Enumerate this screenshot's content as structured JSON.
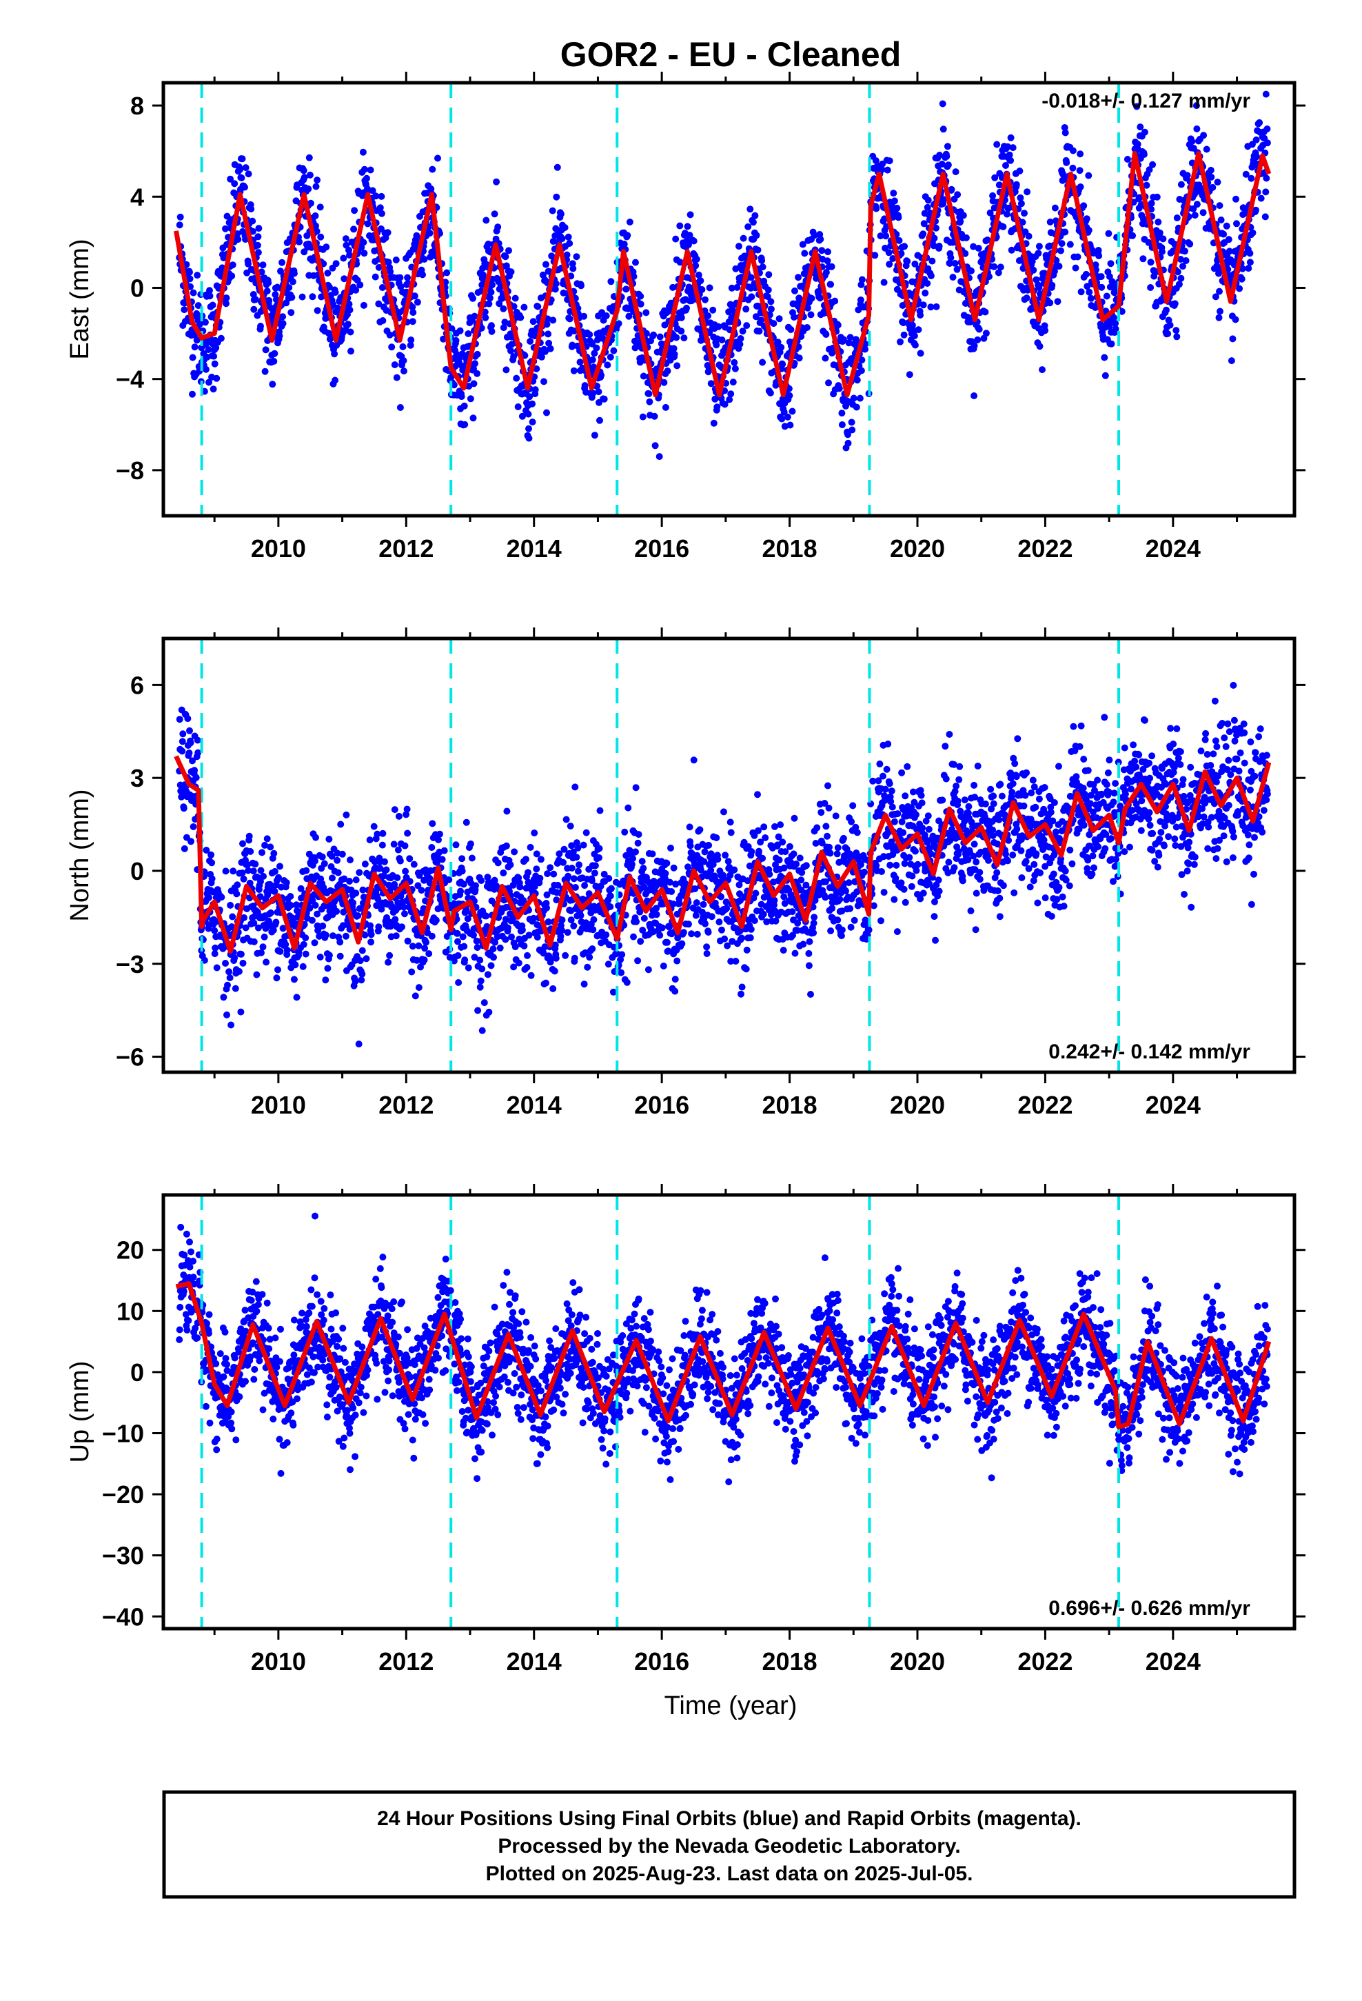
{
  "title": "GOR2  - EU - Cleaned",
  "xlabel": "Time (year)",
  "footer": {
    "line1": "24 Hour Positions Using Final Orbits (blue) and Rapid Orbits (magenta).",
    "line2": "Processed by the Nevada Geodetic Laboratory.",
    "line3": "Plotted on 2025-Aug-23. Last data on 2025-Jul-05."
  },
  "colors": {
    "points": "#0000ff",
    "model": "#ee0000",
    "steps": "#00e5e5",
    "frame": "#000000"
  },
  "chart_data": [
    {
      "type": "scatter",
      "component": "East",
      "ylabel": "East (mm)",
      "xlim": [
        2008.2,
        2025.9
      ],
      "ylim": [
        -10,
        9
      ],
      "xticks": [
        2010,
        2012,
        2014,
        2016,
        2018,
        2020,
        2022,
        2024
      ],
      "yticks": [
        -8,
        -4,
        0,
        4,
        8
      ],
      "rate_label": "-0.018+/- 0.127 mm/yr",
      "rate_position": "top-right",
      "step_epochs": [
        2008.8,
        2012.7,
        2015.3,
        2019.25,
        2023.15
      ],
      "model": {
        "type": "line",
        "x": [
          2008.4,
          2008.65,
          2008.8,
          2009.0,
          2009.4,
          2009.9,
          2010.4,
          2010.9,
          2011.4,
          2011.9,
          2012.4,
          2012.7,
          2012.9,
          2013.4,
          2013.9,
          2014.4,
          2014.9,
          2015.3,
          2015.4,
          2015.9,
          2016.4,
          2016.9,
          2017.4,
          2017.9,
          2018.4,
          2018.9,
          2019.24,
          2019.27,
          2019.4,
          2019.9,
          2020.4,
          2020.9,
          2021.4,
          2021.9,
          2022.4,
          2022.9,
          2023.15,
          2023.4,
          2023.9,
          2024.4,
          2024.9,
          2025.4,
          2025.5
        ],
        "y": [
          2.5,
          -1.5,
          -2.2,
          -2.0,
          4.1,
          -2.3,
          4.1,
          -2.3,
          4.1,
          -2.3,
          4.1,
          -3.5,
          -4.4,
          1.9,
          -4.4,
          1.9,
          -4.4,
          -1.0,
          1.6,
          -4.7,
          1.6,
          -4.7,
          1.6,
          -4.7,
          1.6,
          -4.7,
          -1.2,
          3.6,
          5.0,
          -1.4,
          5.0,
          -1.4,
          5.0,
          -1.4,
          5.0,
          -1.4,
          -0.8,
          5.9,
          -0.6,
          5.9,
          -0.6,
          5.8,
          5.0
        ]
      }
    },
    {
      "type": "scatter",
      "component": "North",
      "ylabel": "North (mm)",
      "xlim": [
        2008.2,
        2025.9
      ],
      "ylim": [
        -6.5,
        7.5
      ],
      "xticks": [
        2010,
        2012,
        2014,
        2016,
        2018,
        2020,
        2022,
        2024
      ],
      "yticks": [
        -6,
        -3,
        0,
        3,
        6
      ],
      "rate_label": "0.242+/- 0.142 mm/yr",
      "rate_position": "bottom-right",
      "step_epochs": [
        2008.8,
        2012.7,
        2015.3,
        2019.25,
        2023.15
      ],
      "model": {
        "type": "line",
        "x": [
          2008.4,
          2008.6,
          2008.75,
          2008.8,
          2008.82,
          2009.0,
          2009.25,
          2009.5,
          2009.75,
          2010.0,
          2010.25,
          2010.5,
          2010.75,
          2011.0,
          2011.25,
          2011.5,
          2011.75,
          2012.0,
          2012.25,
          2012.5,
          2012.7,
          2012.75,
          2013.0,
          2013.25,
          2013.5,
          2013.75,
          2014.0,
          2014.25,
          2014.5,
          2014.75,
          2015.0,
          2015.3,
          2015.5,
          2015.75,
          2016.0,
          2016.25,
          2016.5,
          2016.75,
          2017.0,
          2017.25,
          2017.5,
          2017.75,
          2018.0,
          2018.25,
          2018.5,
          2018.75,
          2019.0,
          2019.24,
          2019.27,
          2019.5,
          2019.75,
          2020.0,
          2020.25,
          2020.5,
          2020.75,
          2021.0,
          2021.25,
          2021.5,
          2021.75,
          2022.0,
          2022.25,
          2022.5,
          2022.75,
          2023.0,
          2023.15,
          2023.25,
          2023.5,
          2023.75,
          2024.0,
          2024.25,
          2024.5,
          2024.75,
          2025.0,
          2025.25,
          2025.5
        ],
        "y": [
          3.7,
          2.8,
          2.6,
          -1.8,
          -1.6,
          -1.0,
          -2.6,
          -0.5,
          -1.2,
          -0.8,
          -2.5,
          -0.4,
          -1.0,
          -0.6,
          -2.3,
          -0.1,
          -0.9,
          -0.4,
          -2.0,
          0.1,
          -1.9,
          -1.3,
          -1.0,
          -2.5,
          -0.5,
          -1.5,
          -0.8,
          -2.4,
          -0.4,
          -1.2,
          -0.7,
          -2.2,
          -0.2,
          -1.3,
          -0.6,
          -2.0,
          0.0,
          -1.0,
          -0.4,
          -1.8,
          0.3,
          -0.8,
          -0.1,
          -1.6,
          0.6,
          -0.5,
          0.3,
          -1.4,
          0.6,
          1.8,
          0.7,
          1.2,
          -0.1,
          2.0,
          0.9,
          1.4,
          0.2,
          2.2,
          1.1,
          1.5,
          0.5,
          2.5,
          1.3,
          1.8,
          0.9,
          2.0,
          2.8,
          1.9,
          2.8,
          1.3,
          3.2,
          2.1,
          3.0,
          1.6,
          3.5
        ]
      }
    },
    {
      "type": "scatter",
      "component": "Up",
      "ylabel": "Up (mm)",
      "xlim": [
        2008.2,
        2025.9
      ],
      "ylim": [
        -42,
        29
      ],
      "xticks": [
        2010,
        2012,
        2014,
        2016,
        2018,
        2020,
        2022,
        2024
      ],
      "yticks": [
        -40,
        -30,
        -20,
        -10,
        0,
        10,
        20
      ],
      "rate_label": "0.696+/- 0.626 mm/yr",
      "rate_position": "bottom-right",
      "step_epochs": [
        2008.8,
        2012.7,
        2015.3,
        2019.25,
        2023.15
      ],
      "model": {
        "type": "line",
        "x": [
          2008.4,
          2008.6,
          2008.8,
          2009.0,
          2009.2,
          2009.6,
          2010.1,
          2010.6,
          2011.1,
          2011.6,
          2012.1,
          2012.6,
          2013.1,
          2013.6,
          2014.1,
          2014.6,
          2015.1,
          2015.6,
          2016.1,
          2016.6,
          2017.1,
          2017.6,
          2018.1,
          2018.6,
          2019.1,
          2019.6,
          2020.1,
          2020.6,
          2021.1,
          2021.6,
          2022.1,
          2022.6,
          2023.1,
          2023.15,
          2023.3,
          2023.6,
          2024.1,
          2024.6,
          2025.1,
          2025.5
        ],
        "y": [
          14.0,
          14.5,
          8.0,
          -2.0,
          -5.5,
          7.8,
          -5.5,
          8.3,
          -5.0,
          8.8,
          -4.5,
          9.5,
          -7.5,
          6.2,
          -7.0,
          6.8,
          -6.5,
          5.2,
          -8.0,
          5.8,
          -7.0,
          6.5,
          -6.0,
          7.2,
          -5.5,
          7.5,
          -5.5,
          8.0,
          -5.0,
          8.5,
          -4.0,
          9.5,
          -3.0,
          -9.0,
          -8.5,
          5.0,
          -8.5,
          5.5,
          -8.0,
          5.0
        ]
      }
    }
  ]
}
